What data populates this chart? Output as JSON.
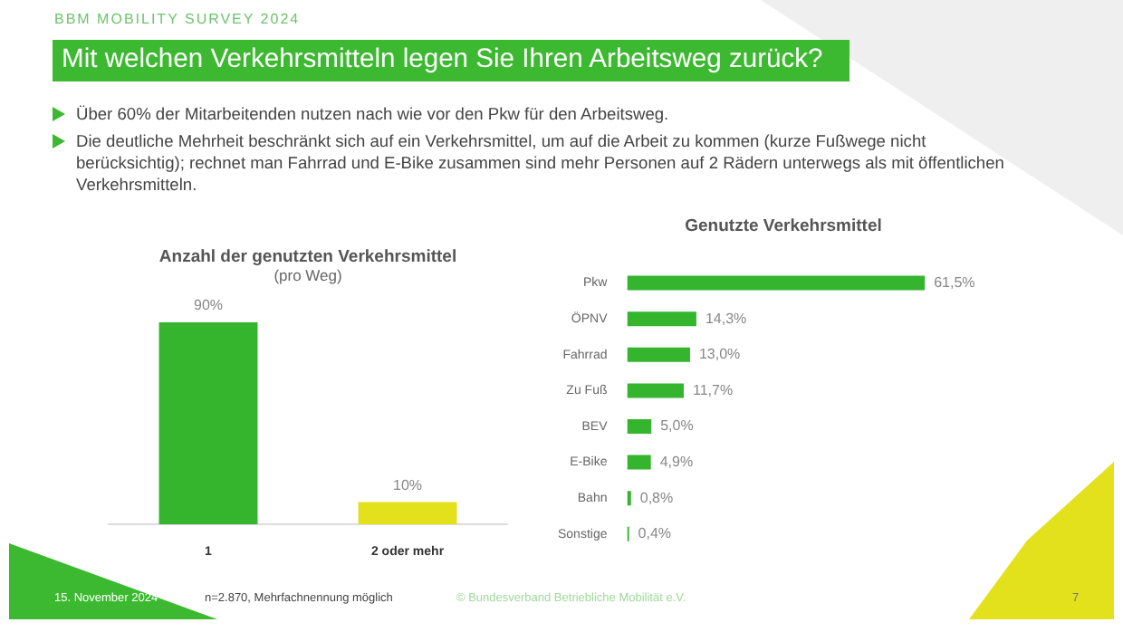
{
  "chart_data": [
    {
      "type": "bar",
      "title": "Anzahl der genutzten Verkehrsmittel",
      "subtitle": "(pro Weg)",
      "categories": [
        "1",
        "2 oder mehr"
      ],
      "values": [
        90,
        10
      ],
      "colors": [
        "#35b42e",
        "#e3e01c"
      ],
      "value_labels": [
        "90%",
        "10%"
      ],
      "annotations": [
        "BBM MOBILITY SURVEY 2024",
        "Mit welchen Verkehrsmitteln legen Sie Ihren Arbeitsweg zurück?",
        "Über 60% der Mitarbeitenden nutzen nach wie vor den Pkw für den Arbeitsweg.",
        "Die deutliche Mehrheit beschränkt sich auf ein Verkehrsmittel, um auf die Arbeit zu kommen (kurze Fußwege nicht berücksichtig); rechnet man Fahrrad und E-Bike zusammen sind mehr Personen auf 2 Rädern unterwegs als mit öffentlichen Verkehrsmitteln."
      ]
    },
    {
      "type": "bar",
      "orientation": "horizontal",
      "title": "Genutzte Verkehrsmittel",
      "categories": [
        "Pkw",
        "ÖPNV",
        "Fahrrad",
        "Zu Fuß",
        "BEV",
        "E-Bike",
        "Bahn",
        "Sonstige"
      ],
      "values": [
        61.5,
        14.3,
        13.0,
        11.7,
        5.0,
        4.9,
        0.8,
        0.4
      ],
      "color": "#35b42e",
      "value_labels": [
        "61,5%",
        "14,3%",
        "13,0%",
        "11,7%",
        "5,0%",
        "4,9%",
        "0,8%",
        "0,4%"
      ],
      "annotations": [
        "15. November 2024",
        "n=2.870, Mehrfachnennung möglich",
        "© Bundesverband Betriebliche Mobilität e.V.",
        "7"
      ]
    }
  ]
}
